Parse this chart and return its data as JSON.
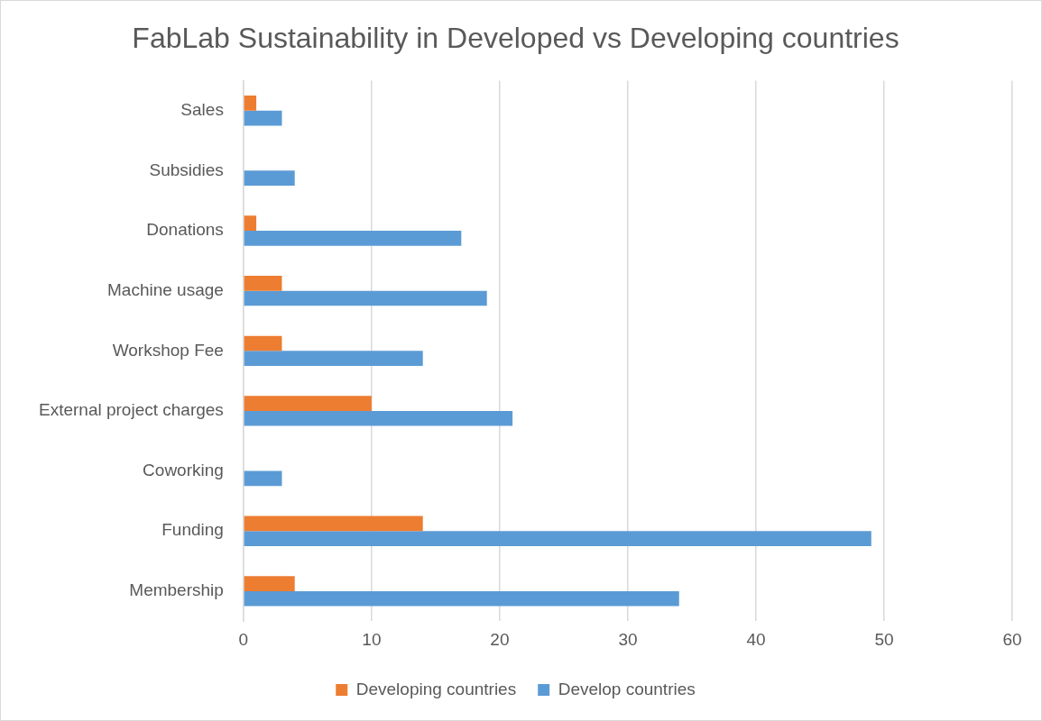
{
  "chart_data": {
    "type": "bar",
    "orientation": "horizontal",
    "title": "FabLab Sustainability in Developed vs Developing countries",
    "categories": [
      "Sales",
      "Subsidies",
      "Donations",
      "Machine usage",
      "Workshop Fee",
      "External project charges",
      "Coworking",
      "Funding",
      "Membership"
    ],
    "series": [
      {
        "name": "Developing countries",
        "color": "#ed7d31",
        "values": [
          1,
          0,
          1,
          3,
          3,
          10,
          0,
          14,
          4
        ]
      },
      {
        "name": "Develop countries",
        "color": "#5b9bd5",
        "values": [
          3,
          4,
          17,
          19,
          14,
          21,
          3,
          49,
          34
        ]
      }
    ],
    "xlim": [
      0,
      60
    ],
    "xticks": [
      0,
      10,
      20,
      30,
      40,
      50,
      60
    ],
    "grid": "x",
    "legend": "bottom"
  }
}
